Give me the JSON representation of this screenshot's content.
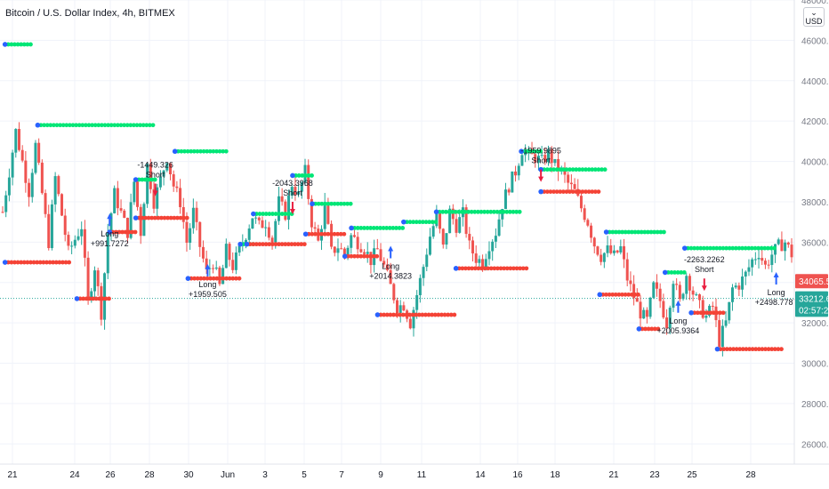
{
  "title": "Bitcoin / U.S. Dollar Index, 4h, BITMEX",
  "currency_button": {
    "line1": "⌄",
    "line2": "USD"
  },
  "colors": {
    "bull": "#26a69a",
    "bear": "#ef5350",
    "green_dots": "#00e676",
    "red_dots": "#f44336",
    "blue_marker": "#2962ff",
    "short_arrow": "#e91e40",
    "grid": "#f0f3fa",
    "axis_text": "#787b86"
  },
  "chart_data": {
    "type": "candlestick",
    "ylim": [
      25000,
      48000
    ],
    "y_ticks": [
      "26000.00",
      "28000.00",
      "30000.00",
      "32000.00",
      "34000.00",
      "36000.00",
      "38000.00",
      "40000.00",
      "42000.00",
      "44000.00",
      "46000.00",
      "48000.00"
    ],
    "x_ticks": [
      "21",
      "24",
      "26",
      "28",
      "30",
      "Jun",
      "3",
      "5",
      "7",
      "9",
      "11",
      "14",
      "16",
      "18",
      "21",
      "23",
      "25",
      "28"
    ],
    "price_labels": [
      {
        "label": "34065.59",
        "value": 34066,
        "color": "#ef5350"
      },
      {
        "label": "33212.62",
        "value": 33213,
        "color": "#26a69a"
      },
      {
        "label": "02:57:27",
        "value": 32650,
        "color": "#26a69a"
      }
    ],
    "current_price_line": 33213,
    "price_path": [
      [
        0,
        37500
      ],
      [
        2,
        41500
      ],
      [
        4,
        38500
      ],
      [
        5,
        40800
      ],
      [
        7,
        36000
      ],
      [
        8,
        39200
      ],
      [
        10,
        35500
      ],
      [
        12,
        36800
      ],
      [
        13,
        33000
      ],
      [
        14,
        34800
      ],
      [
        15,
        32500
      ],
      [
        16,
        36500
      ],
      [
        17,
        38400
      ],
      [
        19,
        36500
      ],
      [
        20,
        39000
      ],
      [
        21,
        36500
      ],
      [
        22,
        39800
      ],
      [
        23,
        38000
      ],
      [
        25,
        40200
      ],
      [
        26,
        38800
      ],
      [
        27,
        38000
      ],
      [
        28,
        36000
      ],
      [
        29,
        37500
      ],
      [
        30,
        35800
      ],
      [
        31,
        34500
      ],
      [
        32,
        35000
      ],
      [
        33,
        33800
      ],
      [
        34,
        35600
      ],
      [
        35,
        34800
      ],
      [
        37,
        36400
      ],
      [
        38,
        37300
      ],
      [
        39,
        36800
      ],
      [
        40,
        37000
      ],
      [
        41,
        36100
      ],
      [
        42,
        38000
      ],
      [
        43,
        37400
      ],
      [
        44,
        38900
      ],
      [
        45,
        38300
      ],
      [
        46,
        39500
      ],
      [
        47,
        37000
      ],
      [
        48,
        36000
      ],
      [
        49,
        37800
      ],
      [
        50,
        35500
      ],
      [
        51,
        35800
      ],
      [
        52,
        35400
      ],
      [
        53,
        36300
      ],
      [
        55,
        35700
      ],
      [
        56,
        35100
      ],
      [
        57,
        35600
      ],
      [
        58,
        34800
      ],
      [
        59,
        33800
      ],
      [
        60,
        32800
      ],
      [
        61,
        32900
      ],
      [
        62,
        32000
      ],
      [
        63,
        33400
      ],
      [
        64,
        34800
      ],
      [
        65,
        36300
      ],
      [
        66,
        37300
      ],
      [
        67,
        35700
      ],
      [
        68,
        37500
      ],
      [
        69,
        36800
      ],
      [
        70,
        37400
      ],
      [
        71,
        35800
      ],
      [
        72,
        35200
      ],
      [
        73,
        35000
      ],
      [
        74,
        35900
      ],
      [
        75,
        36500
      ],
      [
        76,
        37900
      ],
      [
        77,
        38800
      ],
      [
        78,
        39500
      ],
      [
        79,
        40600
      ],
      [
        80,
        40300
      ],
      [
        81,
        40200
      ],
      [
        82,
        40000
      ],
      [
        83,
        40400
      ],
      [
        84,
        39800
      ],
      [
        85,
        39500
      ],
      [
        86,
        38900
      ],
      [
        87,
        38500
      ],
      [
        88,
        37700
      ],
      [
        89,
        37000
      ],
      [
        90,
        35900
      ],
      [
        91,
        35300
      ],
      [
        92,
        35600
      ],
      [
        93,
        35300
      ],
      [
        94,
        35700
      ],
      [
        95,
        34200
      ],
      [
        96,
        33300
      ],
      [
        97,
        32500
      ],
      [
        98,
        32100
      ],
      [
        99,
        33800
      ],
      [
        100,
        33100
      ],
      [
        101,
        32000
      ],
      [
        102,
        34200
      ],
      [
        103,
        33000
      ],
      [
        104,
        34400
      ],
      [
        105,
        33500
      ],
      [
        106,
        32800
      ],
      [
        107,
        32300
      ],
      [
        108,
        32800
      ],
      [
        109,
        31100
      ],
      [
        110,
        32000
      ],
      [
        111,
        33700
      ],
      [
        112,
        33900
      ],
      [
        113,
        34400
      ],
      [
        114,
        35100
      ],
      [
        115,
        35500
      ],
      [
        116,
        34800
      ],
      [
        117,
        35400
      ],
      [
        118,
        35800
      ],
      [
        119,
        36000
      ],
      [
        120,
        35400
      ]
    ],
    "bar_count": 121,
    "green_stop_runs": [
      {
        "bars": [
          0,
          4
        ],
        "value": 45800
      },
      {
        "bars": [
          5,
          23
        ],
        "value": 41800
      },
      {
        "bars": [
          20,
          23
        ],
        "value": 39100
      },
      {
        "bars": [
          26,
          34
        ],
        "value": 40500
      },
      {
        "bars": [
          36,
          38
        ],
        "value": 35900
      },
      {
        "bars": [
          38,
          44
        ],
        "value": 37400
      },
      {
        "bars": [
          44,
          47
        ],
        "value": 39300
      },
      {
        "bars": [
          47,
          53
        ],
        "value": 37900
      },
      {
        "bars": [
          53,
          61
        ],
        "value": 36700
      },
      {
        "bars": [
          61,
          66
        ],
        "value": 37000
      },
      {
        "bars": [
          66,
          79
        ],
        "value": 37500
      },
      {
        "bars": [
          79,
          82
        ],
        "value": 40500
      },
      {
        "bars": [
          82,
          92
        ],
        "value": 39600
      },
      {
        "bars": [
          92,
          101
        ],
        "value": 36500
      },
      {
        "bars": [
          101,
          104
        ],
        "value": 34500
      },
      {
        "bars": [
          104,
          118
        ],
        "value": 35700
      }
    ],
    "red_stop_runs": [
      {
        "bars": [
          0,
          10
        ],
        "value": 35000
      },
      {
        "bars": [
          11,
          16
        ],
        "value": 33200
      },
      {
        "bars": [
          16,
          20
        ],
        "value": 36500
      },
      {
        "bars": [
          20,
          28
        ],
        "value": 37200
      },
      {
        "bars": [
          28,
          36
        ],
        "value": 34200
      },
      {
        "bars": [
          37,
          46
        ],
        "value": 35900
      },
      {
        "bars": [
          46,
          52
        ],
        "value": 36400
      },
      {
        "bars": [
          52,
          57
        ],
        "value": 35300
      },
      {
        "bars": [
          57,
          69
        ],
        "value": 32400
      },
      {
        "bars": [
          69,
          80
        ],
        "value": 34700
      },
      {
        "bars": [
          82,
          91
        ],
        "value": 38500
      },
      {
        "bars": [
          91,
          97
        ],
        "value": 33400
      },
      {
        "bars": [
          97,
          100
        ],
        "value": 31700
      },
      {
        "bars": [
          105,
          110
        ],
        "value": 32500
      },
      {
        "bars": [
          109,
          119
        ],
        "value": 30700
      }
    ],
    "signals": [
      {
        "bar": 16,
        "side": "long",
        "value": 36800,
        "label1": "Long",
        "label2": "+991.7272"
      },
      {
        "bar": 23,
        "side": "short",
        "value": 38900,
        "label1": "-1449.326",
        "label2": "Short"
      },
      {
        "bar": 31,
        "side": "long",
        "value": 34300,
        "label1": "Long",
        "label2": "+1959.505"
      },
      {
        "bar": 44,
        "side": "short",
        "value": 38000,
        "label1": "-2043.3968",
        "label2": "Short"
      },
      {
        "bar": 59,
        "side": "long",
        "value": 35200,
        "label1": "Long",
        "label2": "+2014.3823"
      },
      {
        "bar": 82,
        "side": "short",
        "value": 39600,
        "label1": "-1959.9895",
        "label2": "Short"
      },
      {
        "bar": 103,
        "side": "long",
        "value": 32500,
        "label1": "Long",
        "label2": "+2005.9364"
      },
      {
        "bar": 107,
        "side": "short",
        "value": 34200,
        "label1": "-2263.2262",
        "label2": "Short"
      },
      {
        "bar": 118,
        "side": "long",
        "value": 33900,
        "label1": "Long",
        "label2": "+2498.7787"
      }
    ]
  }
}
